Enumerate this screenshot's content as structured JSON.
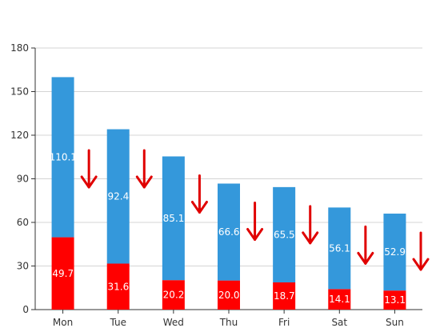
{
  "chart_data": {
    "type": "bar",
    "stacked": true,
    "categories": [
      "Mon",
      "Tue",
      "Wed",
      "Thu",
      "Fri",
      "Sat",
      "Sun"
    ],
    "series": [
      {
        "values": [
          49.78,
          31.65,
          20.27,
          20.03,
          18.72,
          14.12,
          13.11
        ],
        "color": "#ff0000"
      },
      {
        "values": [
          110.17,
          92.45,
          85.14,
          66.68,
          65.57,
          56.13,
          52.93
        ],
        "color": "#3498db"
      }
    ],
    "ylim": [
      0,
      180
    ],
    "yticks": [
      0,
      30,
      60,
      90,
      120,
      150,
      180
    ],
    "grid": true,
    "legend": "none",
    "annotations": {
      "icon": "down-arrow-icon",
      "color": "#e00000",
      "count": 7
    }
  }
}
